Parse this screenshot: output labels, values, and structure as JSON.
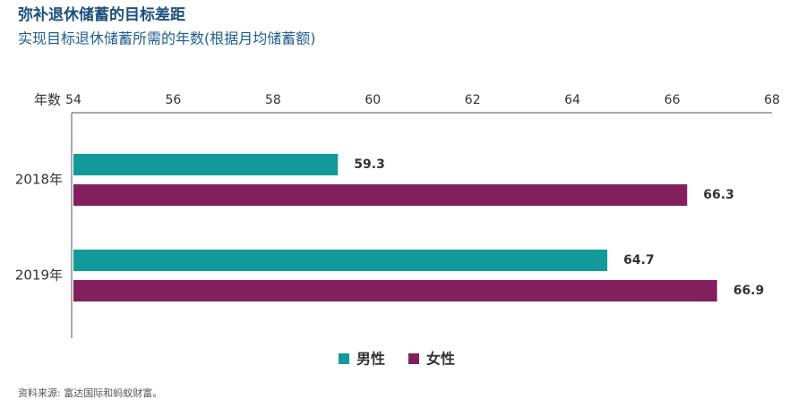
{
  "chart_data": {
    "type": "hbar",
    "title": "弥补退休储蓄的目标差距",
    "subtitle": "实现目标退休储蓄所需的年数(根据月均储蓄额)",
    "x_label": "年数",
    "categories": [
      "2018年",
      "2019年"
    ],
    "series": [
      {
        "name": "男性",
        "color": "#12999a",
        "values": [
          59.3,
          64.7
        ]
      },
      {
        "name": "女性",
        "color": "#82205e",
        "values": [
          66.3,
          66.9
        ]
      }
    ],
    "xlim": [
      54,
      68
    ],
    "xticks": [
      54,
      56,
      58,
      60,
      62,
      64,
      66,
      68
    ],
    "legend": "bottom",
    "source": "资料来源: 富达国际和蚂蚁财富。"
  }
}
